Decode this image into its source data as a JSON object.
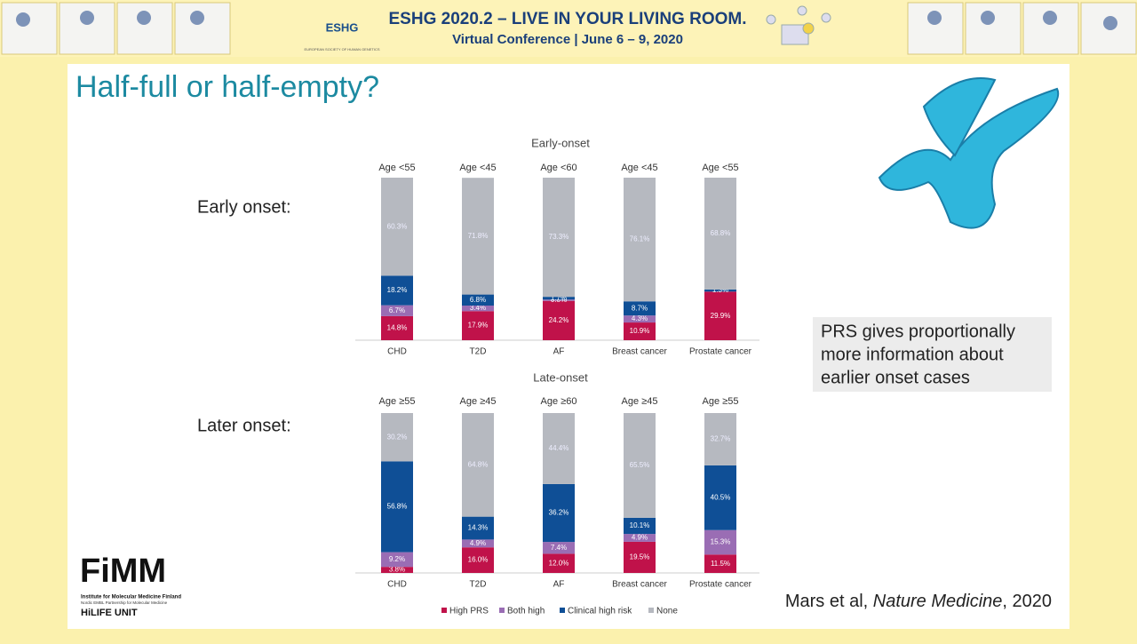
{
  "header": {
    "logo": "ESHG",
    "logo_sub": "EUROPEAN SOCIETY OF HUMAN GENETICS",
    "title": "ESHG 2020.2 – LIVE IN YOUR LIVING ROOM.",
    "subtitle": "Virtual Conference | June 6 – 9, 2020"
  },
  "slide": {
    "title": "Half-full or half-empty?",
    "row_labels": [
      "Early onset:",
      "Later onset:"
    ],
    "note": [
      "PRS gives proportionally",
      "more information about",
      "earlier onset cases"
    ],
    "citation": {
      "authors": "Mars et al, ",
      "journal": "Nature Medicine",
      "year": ", 2020"
    },
    "logo": {
      "name": "FiMM",
      "line1": "Institute for Molecular Medicine Finland",
      "line2": "Nordic EMBL Partnership for Molecular Medicine",
      "unit": "HiLIFE UNIT"
    }
  },
  "chart_data": [
    {
      "type": "bar",
      "stacked": true,
      "title": "Early-onset",
      "ylim": [
        0,
        100
      ],
      "age_labels": [
        "Age <55",
        "Age <45",
        "Age <60",
        "Age <45",
        "Age <55"
      ],
      "categories": [
        "CHD",
        "T2D",
        "AF",
        "Breast cancer",
        "Prostate cancer"
      ],
      "series": [
        {
          "color": "#c0124a",
          "values": [
            14.8,
            17.9,
            24.2,
            10.9,
            29.9
          ],
          "value_labels": [
            "14.8%",
            "17.9%",
            "24.2%",
            "10.9%",
            "29.9%"
          ]
        },
        {
          "color": "#9a6db4",
          "values": [
            6.7,
            3.4,
            0.8,
            4.3,
            0
          ],
          "value_labels": [
            "6.7%",
            "3.4%",
            "0.8%",
            "4.3%",
            null
          ]
        },
        {
          "color": "#0f4f96",
          "values": [
            18.2,
            6.8,
            1.7,
            8.7,
            1.3
          ],
          "value_labels": [
            "18.2%",
            "6.8%",
            "1.7%",
            "8.7%",
            "1.3%"
          ]
        },
        {
          "color": "#b6b9c0",
          "values": [
            60.3,
            71.8,
            73.3,
            76.1,
            68.8
          ],
          "value_labels": [
            "60.3%",
            "71.8%",
            "73.3%",
            "76.1%",
            "68.8%"
          ]
        }
      ]
    },
    {
      "type": "bar",
      "stacked": true,
      "title": "Late-onset",
      "ylim": [
        0,
        100
      ],
      "age_labels": [
        "Age ≥55",
        "Age ≥45",
        "Age ≥60",
        "Age ≥45",
        "Age ≥55"
      ],
      "categories": [
        "CHD",
        "T2D",
        "AF",
        "Breast cancer",
        "Prostate cancer"
      ],
      "series": [
        {
          "name": "High PRS",
          "color": "#c0124a",
          "values": [
            3.8,
            16.0,
            12.0,
            19.5,
            11.5
          ],
          "value_labels": [
            "3.8%",
            "16.0%",
            "12.0%",
            "19.5%",
            "11.5%"
          ]
        },
        {
          "name": "Both high",
          "color": "#9a6db4",
          "values": [
            9.2,
            4.9,
            7.4,
            4.9,
            15.3
          ],
          "value_labels": [
            "9.2%",
            "4.9%",
            "7.4%",
            "4.9%",
            "15.3%"
          ]
        },
        {
          "name": "Clinical high risk",
          "color": "#0f4f96",
          "values": [
            56.8,
            14.3,
            36.2,
            10.1,
            40.5
          ],
          "value_labels": [
            "56.8%",
            "14.3%",
            "36.2%",
            "10.1%",
            "40.5%"
          ]
        },
        {
          "name": "None",
          "color": "#b6b9c0",
          "values": [
            30.2,
            64.8,
            44.4,
            65.5,
            32.7
          ],
          "value_labels": [
            "30.2%",
            "64.8%",
            "44.4%",
            "65.5%",
            "32.7%"
          ]
        }
      ]
    }
  ]
}
